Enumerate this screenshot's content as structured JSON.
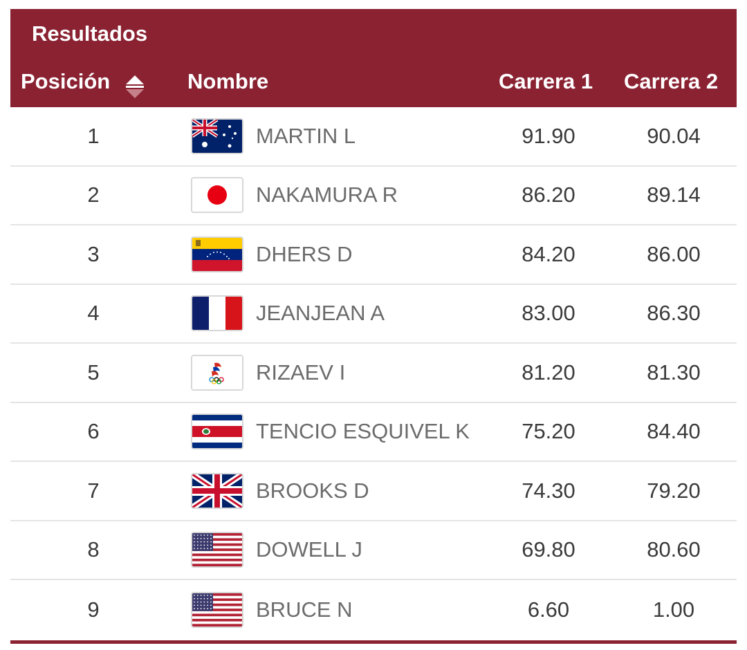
{
  "table": {
    "title": "Resultados",
    "columns": {
      "position": "Posición",
      "name": "Nombre",
      "run1": "Carrera 1",
      "run2": "Carrera 2"
    },
    "sort_icon": "sort-up-down-icon",
    "colors": {
      "header_bg": "#8a2232",
      "header_text": "#ffffff",
      "row_divider": "#e4e4e4"
    },
    "rows": [
      {
        "pos": "1",
        "flag": "australia-flag-icon",
        "name": "MARTIN L",
        "run1": "91.90",
        "run2": "90.04"
      },
      {
        "pos": "2",
        "flag": "japan-flag-icon",
        "name": "NAKAMURA R",
        "run1": "86.20",
        "run2": "89.14"
      },
      {
        "pos": "3",
        "flag": "venezuela-flag-icon",
        "name": "DHERS D",
        "run1": "84.20",
        "run2": "86.00"
      },
      {
        "pos": "4",
        "flag": "france-flag-icon",
        "name": "JEANJEAN A",
        "run1": "83.00",
        "run2": "86.30"
      },
      {
        "pos": "5",
        "flag": "roc-flag-icon",
        "name": "RIZAEV I",
        "run1": "81.20",
        "run2": "81.30"
      },
      {
        "pos": "6",
        "flag": "costa-rica-flag-icon",
        "name": "TENCIO ESQUIVEL K",
        "run1": "75.20",
        "run2": "84.40"
      },
      {
        "pos": "7",
        "flag": "great-britain-flag-icon",
        "name": "BROOKS D",
        "run1": "74.30",
        "run2": "79.20"
      },
      {
        "pos": "8",
        "flag": "usa-flag-icon",
        "name": "DOWELL J",
        "run1": "69.80",
        "run2": "80.60"
      },
      {
        "pos": "9",
        "flag": "usa-flag-icon",
        "name": "BRUCE N",
        "run1": "6.60",
        "run2": "1.00"
      }
    ]
  }
}
